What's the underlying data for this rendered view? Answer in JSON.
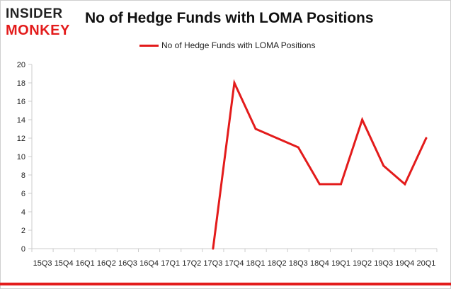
{
  "brand": {
    "logo_top": "INSIDER",
    "logo_bottom": "MONKEY",
    "accent_color": "#e31b1b",
    "text_color": "#222222"
  },
  "chart_data": {
    "type": "line",
    "title": "No of Hedge Funds with LOMA Positions",
    "xlabel": "",
    "ylabel": "",
    "categories": [
      "2015Q3",
      "2015Q4",
      "2016Q1",
      "2016Q2",
      "2016Q3",
      "2016Q4",
      "2017Q1",
      "2017Q2",
      "2017Q3",
      "2017Q4",
      "2018Q1",
      "2018Q2",
      "2018Q3",
      "2018Q4",
      "2019Q1",
      "2019Q2",
      "2019Q3",
      "2019Q4",
      "2020Q1"
    ],
    "tick_labels": [
      "15Q3",
      "15Q4",
      "16Q1",
      "16Q2",
      "16Q3",
      "16Q4",
      "17Q1",
      "17Q2",
      "17Q3",
      "17Q4",
      "18Q1",
      "18Q2",
      "18Q3",
      "18Q4",
      "19Q1",
      "19Q2",
      "19Q3",
      "19Q4",
      "20Q1"
    ],
    "series": [
      {
        "name": "No of Hedge Funds with LOMA Positions",
        "color": "#e31b1b",
        "values": [
          null,
          null,
          null,
          null,
          null,
          null,
          null,
          null,
          0,
          18,
          13,
          12,
          11,
          7,
          7,
          14,
          9,
          7,
          12
        ]
      }
    ],
    "ylim": [
      0,
      20
    ],
    "yticks": [
      0,
      2,
      4,
      6,
      8,
      10,
      12,
      14,
      16,
      18,
      20
    ],
    "grid": false,
    "legend": "top-center"
  }
}
